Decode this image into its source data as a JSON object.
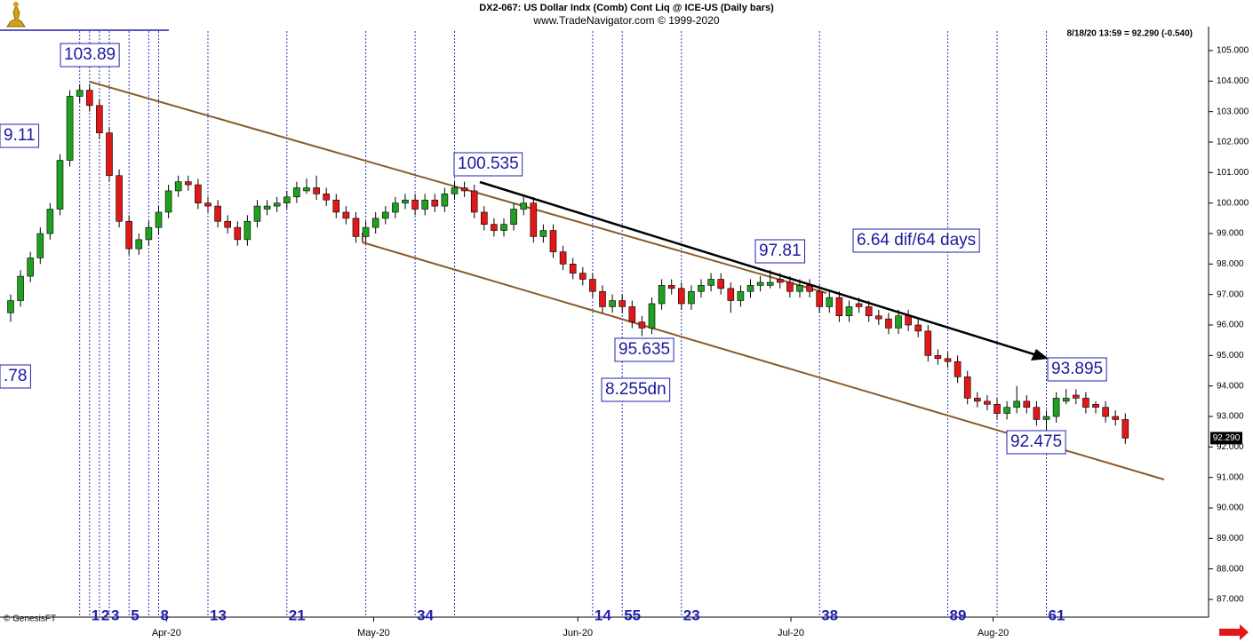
{
  "chart_data": {
    "type": "candlestick",
    "title": "DX2-067:  US Dollar Indx (Comb) Cont Liq @ ICE-US  (Daily bars)",
    "subtitle": "www.TradeNavigator.com © 1999-2020",
    "quote": "8/18/20 13:59 = 92.290 (-0.540)",
    "source": "© GenesisFT",
    "up_color": "#1fa01f",
    "down_color": "#e01818",
    "last_price": {
      "value": 92.29,
      "label": "92.290"
    },
    "xlim": [
      -1.08,
      121.44
    ],
    "xticks": [
      {
        "value": 15.8,
        "label": "Apr-20"
      },
      {
        "value": 36.8,
        "label": "May-20"
      },
      {
        "value": 57.5,
        "label": "Jun-20"
      },
      {
        "value": 79.1,
        "label": "Jul-20"
      },
      {
        "value": 99.6,
        "label": "Aug-20"
      }
    ],
    "ylim": [
      86.71,
      105.64
    ],
    "yticks": [
      {
        "value": 87,
        "label": "87.000"
      },
      {
        "value": 88,
        "label": "88.000"
      },
      {
        "value": 89,
        "label": "89.000"
      },
      {
        "value": 90,
        "label": "90.000"
      },
      {
        "value": 91,
        "label": "91.000"
      },
      {
        "value": 92,
        "label": "92.000"
      },
      {
        "value": 93,
        "label": "93.000"
      },
      {
        "value": 94,
        "label": "94.000"
      },
      {
        "value": 95,
        "label": "95.000"
      },
      {
        "value": 96,
        "label": "96.000"
      },
      {
        "value": 97,
        "label": "97.000"
      },
      {
        "value": 98,
        "label": "98.000"
      },
      {
        "value": 99,
        "label": "99.000"
      },
      {
        "value": 100,
        "label": "100.000"
      },
      {
        "value": 101,
        "label": "101.000"
      },
      {
        "value": 102,
        "label": "102.000"
      },
      {
        "value": 103,
        "label": "103.000"
      },
      {
        "value": 104,
        "label": "104.000"
      },
      {
        "value": 105,
        "label": "105.000"
      }
    ],
    "candles": [
      [
        96.4,
        97.0,
        96.1,
        96.8
      ],
      [
        96.8,
        97.8,
        96.6,
        97.6
      ],
      [
        97.6,
        98.4,
        97.4,
        98.2
      ],
      [
        98.2,
        99.2,
        98.0,
        99.0
      ],
      [
        99.0,
        100.0,
        98.8,
        99.8
      ],
      [
        99.8,
        101.6,
        99.6,
        101.4
      ],
      [
        101.4,
        103.7,
        101.2,
        103.5
      ],
      [
        103.5,
        103.89,
        103.3,
        103.7
      ],
      [
        103.7,
        103.9,
        103.0,
        103.2
      ],
      [
        103.2,
        103.4,
        102.1,
        102.3
      ],
      [
        102.3,
        102.5,
        100.7,
        100.9
      ],
      [
        100.9,
        101.1,
        99.2,
        99.4
      ],
      [
        99.4,
        99.6,
        98.3,
        98.5
      ],
      [
        98.5,
        99.0,
        98.3,
        98.8
      ],
      [
        98.8,
        99.4,
        98.6,
        99.2
      ],
      [
        99.2,
        99.9,
        99.0,
        99.7
      ],
      [
        99.7,
        100.6,
        99.5,
        100.4
      ],
      [
        100.4,
        100.9,
        100.2,
        100.7
      ],
      [
        100.7,
        100.9,
        100.4,
        100.6
      ],
      [
        100.6,
        100.8,
        99.8,
        100.0
      ],
      [
        100.0,
        100.2,
        99.7,
        99.9
      ],
      [
        99.9,
        100.1,
        99.2,
        99.4
      ],
      [
        99.4,
        99.6,
        99.0,
        99.2
      ],
      [
        99.2,
        99.4,
        98.6,
        98.8
      ],
      [
        98.8,
        99.6,
        98.6,
        99.4
      ],
      [
        99.4,
        100.1,
        99.2,
        99.9
      ],
      [
        99.8,
        100.1,
        99.6,
        99.9
      ],
      [
        99.9,
        100.2,
        99.7,
        100.0
      ],
      [
        100.0,
        100.4,
        99.8,
        100.2
      ],
      [
        100.2,
        100.7,
        100.0,
        100.5
      ],
      [
        100.4,
        100.8,
        100.3,
        100.5
      ],
      [
        100.5,
        100.9,
        100.1,
        100.3
      ],
      [
        100.3,
        100.5,
        99.9,
        100.1
      ],
      [
        100.1,
        100.3,
        99.5,
        99.7
      ],
      [
        99.7,
        99.9,
        99.3,
        99.5
      ],
      [
        99.5,
        99.7,
        98.7,
        98.9
      ],
      [
        98.9,
        99.4,
        98.7,
        99.2
      ],
      [
        99.2,
        99.7,
        99.0,
        99.5
      ],
      [
        99.5,
        99.9,
        99.3,
        99.7
      ],
      [
        99.7,
        100.2,
        99.5,
        100.0
      ],
      [
        100.0,
        100.3,
        99.8,
        100.1
      ],
      [
        100.1,
        100.3,
        99.6,
        99.8
      ],
      [
        99.8,
        100.3,
        99.6,
        100.1
      ],
      [
        100.1,
        100.3,
        99.7,
        99.9
      ],
      [
        99.9,
        100.5,
        99.7,
        100.3
      ],
      [
        100.3,
        100.7,
        100.1,
        100.5
      ],
      [
        100.5,
        100.7,
        100.2,
        100.4
      ],
      [
        100.4,
        100.6,
        99.5,
        99.7
      ],
      [
        99.7,
        99.9,
        99.1,
        99.3
      ],
      [
        99.3,
        99.5,
        98.9,
        99.1
      ],
      [
        99.1,
        99.5,
        98.9,
        99.3
      ],
      [
        99.3,
        100.0,
        99.1,
        99.8
      ],
      [
        99.8,
        100.2,
        99.6,
        100.0
      ],
      [
        100.0,
        100.2,
        98.7,
        98.9
      ],
      [
        98.9,
        99.3,
        98.7,
        99.1
      ],
      [
        99.1,
        99.3,
        98.2,
        98.4
      ],
      [
        98.4,
        98.6,
        97.8,
        98.0
      ],
      [
        98.0,
        98.2,
        97.5,
        97.7
      ],
      [
        97.7,
        97.9,
        97.3,
        97.5
      ],
      [
        97.5,
        97.7,
        96.9,
        97.1
      ],
      [
        97.1,
        97.3,
        96.4,
        96.6
      ],
      [
        96.6,
        97.0,
        96.4,
        96.8
      ],
      [
        96.8,
        97.0,
        96.4,
        96.6
      ],
      [
        96.6,
        96.8,
        95.9,
        96.1
      ],
      [
        96.1,
        96.3,
        95.635,
        95.9
      ],
      [
        95.9,
        96.9,
        95.7,
        96.7
      ],
      [
        96.7,
        97.5,
        96.5,
        97.3
      ],
      [
        97.3,
        97.5,
        97.0,
        97.2
      ],
      [
        97.2,
        97.4,
        96.5,
        96.7
      ],
      [
        96.7,
        97.3,
        96.5,
        97.1
      ],
      [
        97.1,
        97.5,
        96.9,
        97.3
      ],
      [
        97.3,
        97.7,
        97.1,
        97.5
      ],
      [
        97.5,
        97.7,
        97.0,
        97.2
      ],
      [
        97.2,
        97.4,
        96.4,
        96.8
      ],
      [
        96.8,
        97.3,
        96.6,
        97.1
      ],
      [
        97.1,
        97.5,
        96.9,
        97.3
      ],
      [
        97.3,
        97.6,
        97.1,
        97.4
      ],
      [
        97.3,
        97.81,
        97.2,
        97.4
      ],
      [
        97.5,
        97.7,
        97.2,
        97.4
      ],
      [
        97.4,
        97.6,
        96.9,
        97.1
      ],
      [
        97.1,
        97.5,
        96.9,
        97.3
      ],
      [
        97.3,
        97.5,
        96.9,
        97.1
      ],
      [
        97.1,
        97.3,
        96.4,
        96.6
      ],
      [
        96.6,
        97.1,
        96.4,
        96.9
      ],
      [
        96.9,
        97.1,
        96.1,
        96.3
      ],
      [
        96.3,
        96.8,
        96.1,
        96.6
      ],
      [
        96.7,
        96.9,
        96.4,
        96.6
      ],
      [
        96.6,
        96.8,
        96.1,
        96.3
      ],
      [
        96.3,
        96.5,
        96.0,
        96.2
      ],
      [
        96.2,
        96.4,
        95.7,
        95.9
      ],
      [
        95.9,
        96.5,
        95.7,
        96.3
      ],
      [
        96.3,
        96.5,
        95.8,
        96.0
      ],
      [
        96.0,
        96.2,
        95.6,
        95.8
      ],
      [
        95.8,
        96.0,
        94.8,
        95.0
      ],
      [
        95.0,
        95.2,
        94.7,
        94.9
      ],
      [
        94.9,
        95.1,
        94.6,
        94.8
      ],
      [
        94.8,
        95.0,
        94.1,
        94.3
      ],
      [
        94.3,
        94.5,
        93.4,
        93.6
      ],
      [
        93.6,
        93.8,
        93.3,
        93.5
      ],
      [
        93.5,
        93.7,
        93.2,
        93.4
      ],
      [
        93.4,
        93.6,
        92.9,
        93.1
      ],
      [
        93.1,
        93.5,
        92.9,
        93.3
      ],
      [
        93.3,
        94.0,
        93.1,
        93.5
      ],
      [
        93.5,
        93.7,
        93.1,
        93.3
      ],
      [
        93.3,
        93.5,
        92.7,
        92.9
      ],
      [
        92.9,
        93.2,
        92.475,
        93.0
      ],
      [
        93.0,
        93.8,
        92.8,
        93.6
      ],
      [
        93.5,
        93.9,
        93.4,
        93.6
      ],
      [
        93.7,
        93.895,
        93.4,
        93.6
      ],
      [
        93.6,
        93.8,
        93.1,
        93.3
      ],
      [
        93.4,
        93.5,
        93.1,
        93.3
      ],
      [
        93.3,
        93.5,
        92.8,
        93.0
      ],
      [
        93.0,
        93.2,
        92.7,
        92.9
      ],
      [
        92.9,
        93.1,
        92.1,
        92.29
      ]
    ],
    "cycle_lines": [
      {
        "x": 8,
        "label": "1"
      },
      {
        "x": 9,
        "label": "2"
      },
      {
        "x": 10,
        "label": "3"
      },
      {
        "x": 12,
        "label": "5"
      },
      {
        "x": 15,
        "label": "8"
      },
      {
        "x": 20,
        "label": "13"
      },
      {
        "x": 28,
        "label": "21"
      },
      {
        "x": 41,
        "label": "34"
      },
      {
        "x": 59,
        "label": "14"
      },
      {
        "x": 62,
        "label": "55"
      },
      {
        "x": 68,
        "label": "23"
      },
      {
        "x": 82,
        "label": "38"
      },
      {
        "x": 95,
        "label": "89"
      },
      {
        "x": 105,
        "label": "61"
      }
    ],
    "unlabeled_cycle_lines": [
      7,
      14,
      36,
      45,
      100
    ],
    "annotations": [
      "103.89",
      "9.11",
      ".78",
      "100.535",
      "97.81",
      "6.64 dif/64 days",
      "95.635",
      "8.255dn",
      "93.895",
      "92.475"
    ]
  }
}
